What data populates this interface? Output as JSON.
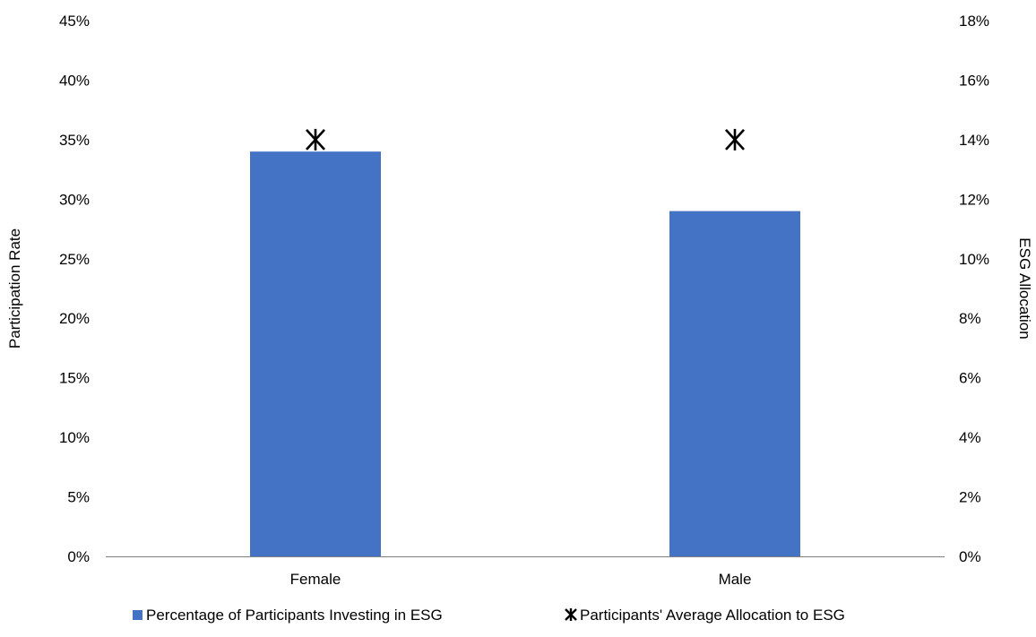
{
  "chart_data": {
    "type": "bar",
    "categories": [
      "Female",
      "Male"
    ],
    "series": [
      {
        "name": "Percentage of Participants Investing in ESG",
        "kind": "bar",
        "axis": "left",
        "color": "#4472C4",
        "values": [
          0.34,
          0.29
        ]
      },
      {
        "name": "Participants' Average Allocation to ESG",
        "kind": "marker",
        "marker": "asterisk",
        "axis": "right",
        "color": "#000000",
        "values": [
          0.14,
          0.14
        ]
      }
    ],
    "ylabel": "Participation Rate",
    "y2label": "ESG Allocation",
    "ylim": [
      0,
      0.45
    ],
    "y2lim": [
      0,
      0.18
    ],
    "yticks": [
      "0%",
      "5%",
      "10%",
      "15%",
      "20%",
      "25%",
      "30%",
      "35%",
      "40%",
      "45%"
    ],
    "y2ticks": [
      "0%",
      "2%",
      "4%",
      "6%",
      "8%",
      "10%",
      "12%",
      "14%",
      "16%",
      "18%"
    ],
    "grid": false,
    "legend": "bottom"
  }
}
